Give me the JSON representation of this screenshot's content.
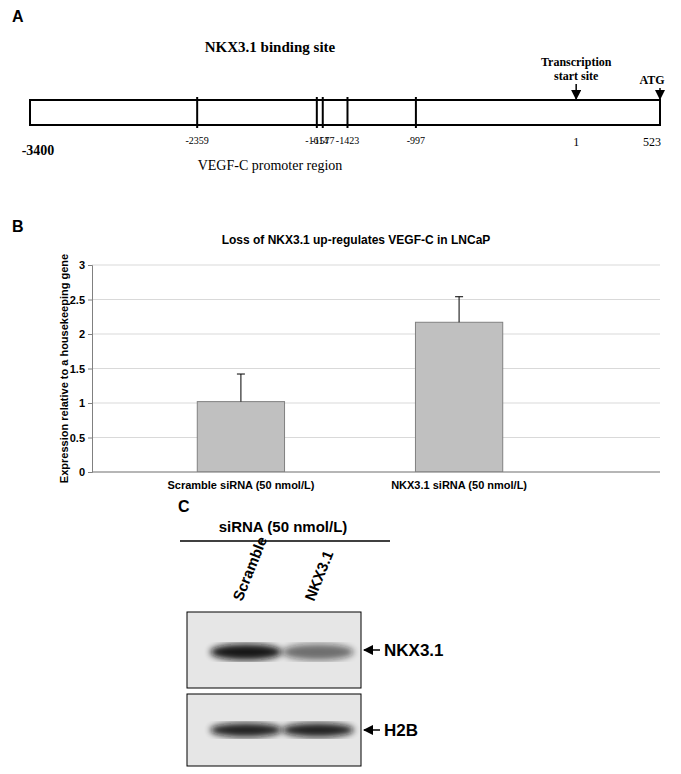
{
  "panel_labels": [
    "A",
    "B",
    "C"
  ],
  "diagram": {
    "title": "NKX3.1 binding site",
    "caption": "VEGF-C promoter region",
    "start": -3400,
    "binding_sites": [
      -2359,
      -1614,
      -1577,
      -1423,
      -997
    ],
    "transcription_start": {
      "label": [
        "Transcription",
        "start site"
      ],
      "position": 1
    },
    "atg": {
      "label": "ATG",
      "position": 523
    }
  },
  "chart_data": {
    "type": "bar",
    "title": "Loss of NKX3.1 up-regulates VEGF-C in LNCaP",
    "y_label": "Expression relative to a housekeeping gene",
    "categories": [
      "Scramble siRNA (50 nmol/L)",
      "NKX3.1 siRNA (50 nmol/L)"
    ],
    "values": [
      1.02,
      2.17
    ],
    "errors": [
      0.4,
      0.37
    ],
    "color": "#c0c0c0",
    "ylim": [
      0,
      3
    ],
    "yticks": [
      0,
      0.5,
      1,
      1.5,
      2,
      2.5,
      3
    ],
    "grid": true
  },
  "blot": {
    "treatment": "siRNA (50 nmol/L)",
    "lanes": [
      "Scramble",
      "NKX3.1"
    ],
    "bands": [
      "NKX3.1",
      "H2B"
    ]
  }
}
